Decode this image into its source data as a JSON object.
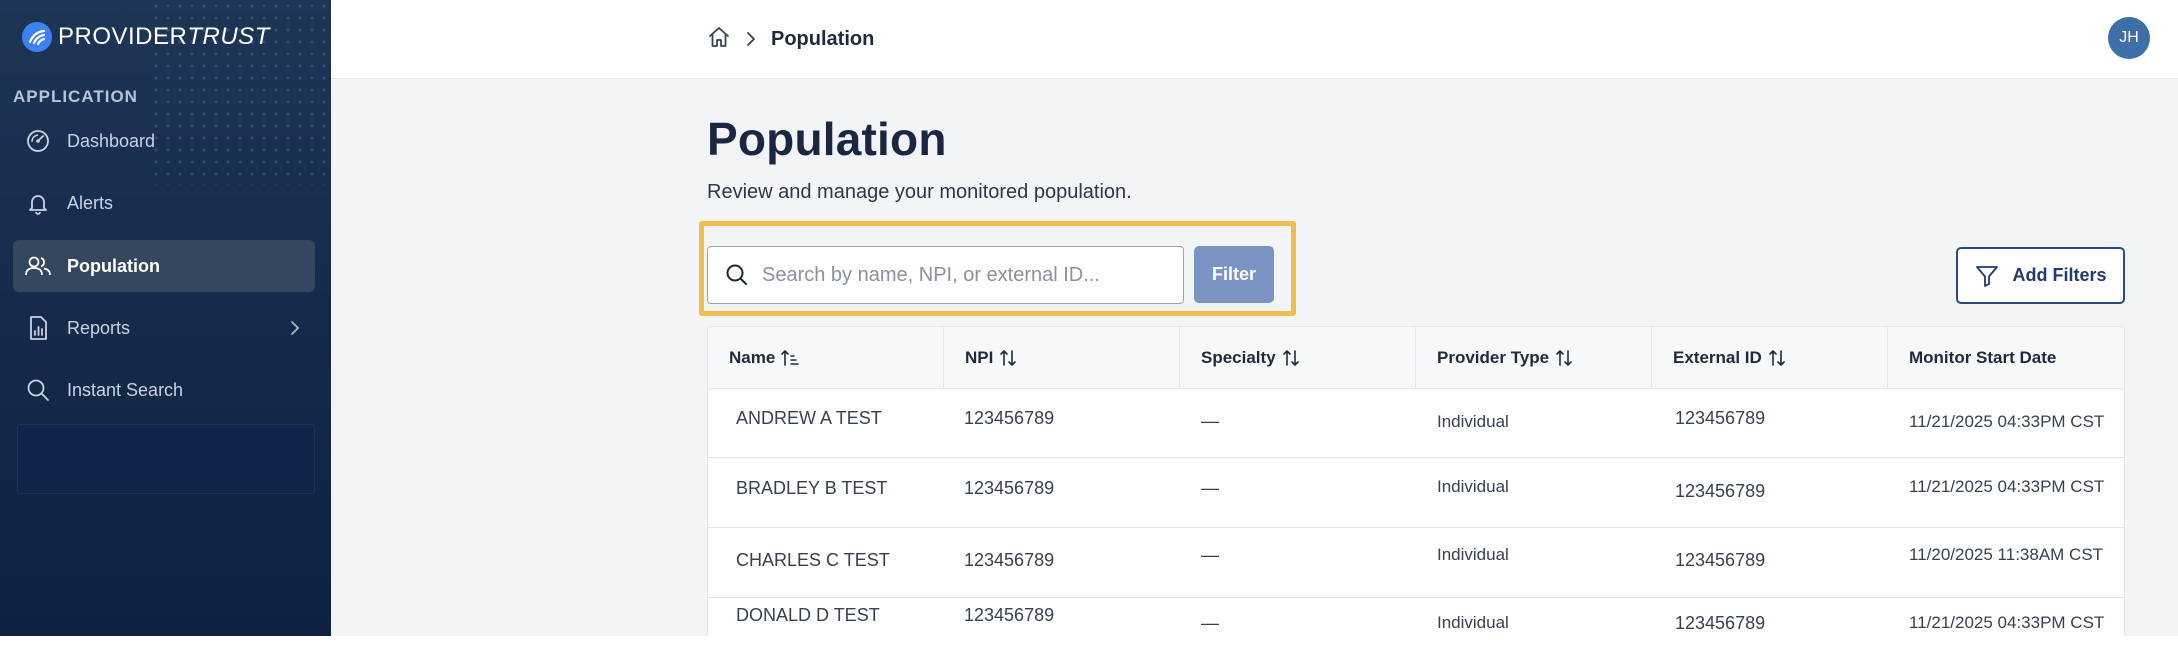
{
  "brand": {
    "name_bold": "PROVIDER",
    "name_italic": "TRUST"
  },
  "sidebar": {
    "section_label": "APPLICATION",
    "items": [
      {
        "label": "Dashboard",
        "icon": "dashboard-gauge-icon",
        "active": false
      },
      {
        "label": "Alerts",
        "icon": "bell-icon",
        "active": false
      },
      {
        "label": "Population",
        "icon": "users-icon",
        "active": true
      },
      {
        "label": "Reports",
        "icon": "report-document-icon",
        "active": false,
        "has_submenu": true
      },
      {
        "label": "Instant Search",
        "icon": "search-icon",
        "active": false
      }
    ]
  },
  "header": {
    "breadcrumb": {
      "home_icon": "home-icon",
      "current": "Population"
    },
    "avatar_initials": "JH"
  },
  "main": {
    "title": "Population",
    "subtitle": "Review and manage your monitored population.",
    "search_placeholder": "Search by name, NPI, or external ID...",
    "filter_label": "Filter",
    "add_filters_label": "Add Filters"
  },
  "table": {
    "columns": [
      "Name",
      "NPI",
      "Specialty",
      "Provider Type",
      "External ID",
      "Monitor Start Date"
    ],
    "rows": [
      {
        "name": "ANDREW A TEST",
        "npi": "123456789",
        "specialty": "—",
        "provider_type": "Individual",
        "external_id": "123456789",
        "monitor_start": "11/21/2025 04:33PM CST"
      },
      {
        "name": "BRADLEY B TEST",
        "npi": "123456789",
        "specialty": "—",
        "provider_type": "Individual",
        "external_id": "123456789",
        "monitor_start": "11/21/2025 04:33PM CST"
      },
      {
        "name": "CHARLES C TEST",
        "npi": "123456789",
        "specialty": "—",
        "provider_type": "Individual",
        "external_id": "123456789",
        "monitor_start": "11/20/2025 11:38AM CST"
      },
      {
        "name": "DONALD D TEST",
        "npi": "123456789",
        "specialty": "—",
        "provider_type": "Individual",
        "external_id": "123456789",
        "monitor_start": "11/21/2025 04:33PM CST"
      }
    ]
  },
  "colors": {
    "sidebar_bg": "#1b3153",
    "accent_highlight": "#f0be4c",
    "filter_button": "#7b94c3",
    "primary_navy": "#1f3b73"
  }
}
